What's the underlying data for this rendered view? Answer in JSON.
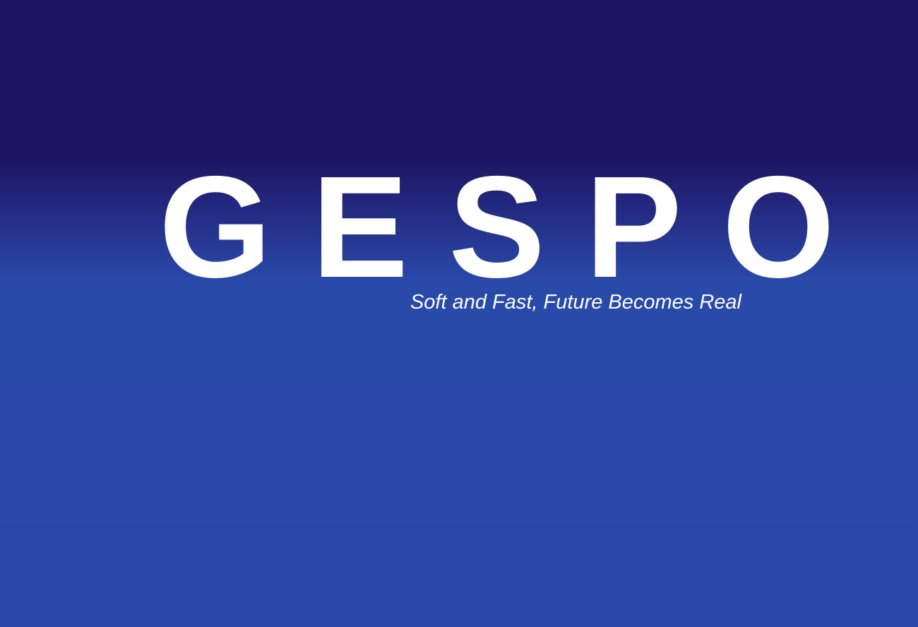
{
  "hero": {
    "brand_name": "GESPO",
    "tagline": "Soft and Fast, Future Becomes Real"
  },
  "colors": {
    "background_top": "#1e1464",
    "background_bottom": "#2a48aa",
    "text": "#ffffff"
  }
}
